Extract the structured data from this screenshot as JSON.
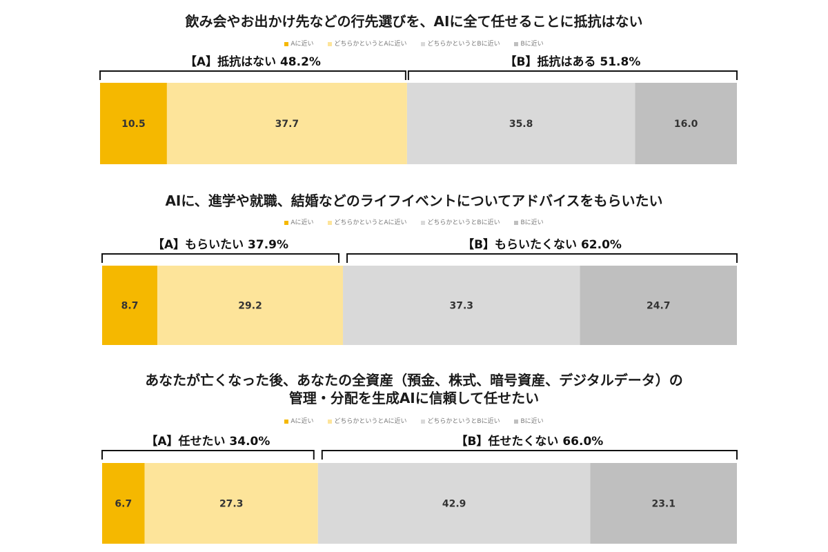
{
  "legend": [
    {
      "label": "Aに近い",
      "color": "#F5B800"
    },
    {
      "label": "どちらかというとAに近い",
      "color": "#FDE49A"
    },
    {
      "label": "どちらかというとBに近い",
      "color": "#D9D9D9"
    },
    {
      "label": "Bに近い",
      "color": "#BFBFBF"
    }
  ],
  "colors": [
    "#F5B800",
    "#FDE49A",
    "#D9D9D9",
    "#BFBFBF"
  ],
  "chart_data": [
    {
      "type": "bar",
      "stacked": true,
      "orientation": "horizontal",
      "title_lines": [
        "飲み会やお出かけ先などの行先選びを、AIに全て任せることに抵抗はない"
      ],
      "group_a_label": "【A】抵抗はない 48.2%",
      "group_b_label": "【B】抵抗はある 51.8%",
      "values": [
        10.5,
        37.7,
        35.8,
        16.0
      ],
      "value_labels": [
        "10.5",
        "37.7",
        "35.8",
        "16.0"
      ],
      "series": [
        "Aに近い",
        "どちらかというとAに近い",
        "どちらかというとBに近い",
        "Bに近い"
      ]
    },
    {
      "type": "bar",
      "stacked": true,
      "orientation": "horizontal",
      "title_lines": [
        "AIに、進学や就職、結婚などのライフイベントについてアドバイスをもらいたい"
      ],
      "group_a_label": "【A】もらいたい 37.9%",
      "group_b_label": "【B】もらいたくない 62.0%",
      "values": [
        8.7,
        29.2,
        37.3,
        24.7
      ],
      "value_labels": [
        "8.7",
        "29.2",
        "37.3",
        "24.7"
      ],
      "series": [
        "Aに近い",
        "どちらかというとAに近い",
        "どちらかというとBに近い",
        "Bに近い"
      ]
    },
    {
      "type": "bar",
      "stacked": true,
      "orientation": "horizontal",
      "title_lines": [
        "あなたが亡くなった後、あなたの全資産（預金、株式、暗号資産、デジタルデータ）の",
        "管理・分配を生成AIに信頼して任せたい"
      ],
      "group_a_label": "【A】任せたい 34.0%",
      "group_b_label": "【B】任せたくない 66.0%",
      "values": [
        6.7,
        27.3,
        42.9,
        23.1
      ],
      "value_labels": [
        "6.7",
        "27.3",
        "42.9",
        "23.1"
      ],
      "series": [
        "Aに近い",
        "どちらかというとAに近い",
        "どちらかというとBに近い",
        "Bに近い"
      ]
    }
  ]
}
